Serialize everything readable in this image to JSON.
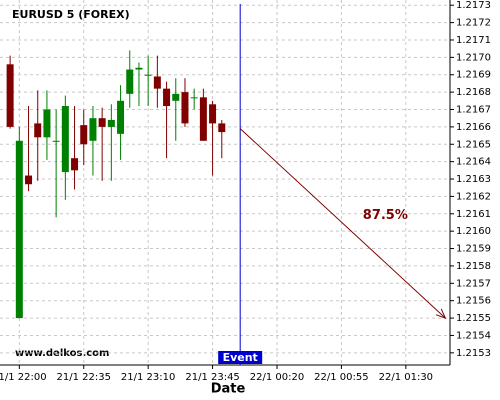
{
  "chart_data": {
    "type": "candlestick",
    "title": "EURUSD 5 (FOREX)",
    "watermark": "www.delkos.com",
    "xlabel": "Date",
    "categories": [
      null,
      null,
      null,
      null,
      null,
      null,
      null,
      null,
      null,
      null,
      null,
      null,
      null,
      null,
      null,
      null,
      null,
      null,
      null,
      null,
      null,
      null,
      null,
      null
    ],
    "open": [
      1.21696,
      1.2155,
      1.21632,
      1.21662,
      1.21654,
      1.21652,
      1.21634,
      1.21642,
      1.21661,
      1.21652,
      1.21665,
      1.2166,
      1.21656,
      1.21679,
      1.21693,
      1.2169,
      1.21689,
      1.21682,
      1.21675,
      1.2168,
      1.21677,
      1.21677,
      1.21673,
      1.21662
    ],
    "high": [
      1.21701,
      1.2166,
      1.21672,
      1.21681,
      1.21681,
      1.2167,
      1.21678,
      1.21672,
      1.2167,
      1.21672,
      1.21671,
      1.21673,
      1.21684,
      1.21704,
      1.21697,
      1.21701,
      1.21701,
      1.21686,
      1.21688,
      1.21688,
      1.21682,
      1.21682,
      1.21675,
      1.21664
    ],
    "low": [
      1.21659,
      1.2155,
      1.21623,
      1.21629,
      1.21641,
      1.21608,
      1.21618,
      1.21624,
      1.21638,
      1.21632,
      1.21629,
      1.21629,
      1.21641,
      1.21671,
      1.21672,
      1.21672,
      1.21671,
      1.21642,
      1.21652,
      1.2166,
      1.2167,
      1.21652,
      1.21632,
      1.21642
    ],
    "close": [
      1.2166,
      1.21652,
      1.21627,
      1.21654,
      1.2167,
      1.21652,
      1.21672,
      1.21635,
      1.2165,
      1.21665,
      1.2166,
      1.21664,
      1.21675,
      1.21693,
      1.21694,
      1.2169,
      1.21682,
      1.21672,
      1.21679,
      1.21662,
      1.21677,
      1.21652,
      1.21662,
      1.21657
    ],
    "up_color": "#008000",
    "down_color": "#800000",
    "xlim": [
      -1.1,
      47.8
    ],
    "xticks": [
      {
        "value": 1,
        "label": "21/1 22:00"
      },
      {
        "value": 8,
        "label": "21/1 22:35"
      },
      {
        "value": 15,
        "label": "21/1 23:10"
      },
      {
        "value": 22,
        "label": "21/1 23:45"
      },
      {
        "value": 29,
        "label": "22/1 00:20"
      },
      {
        "value": 36,
        "label": "22/1 00:55"
      },
      {
        "value": 43,
        "label": "22/1 01:30"
      }
    ],
    "ylim": [
      1.21523,
      1.21733
    ],
    "yticks": [
      1.2153,
      1.2154,
      1.2155,
      1.2156,
      1.2157,
      1.2158,
      1.2159,
      {
        "value": 1.216,
        "label": "1.2160"
      },
      1.2161,
      1.2162,
      1.2163,
      1.2164,
      1.2165,
      1.2166,
      1.2167,
      1.2168,
      1.2169,
      {
        "value": 1.217,
        "label": "1.2170"
      },
      1.2171,
      1.2172,
      1.2173
    ],
    "grid": true,
    "event": {
      "x": 25,
      "label": "Event",
      "color": "#0000cc"
    },
    "forecast": {
      "x": [
        25,
        47.3
      ],
      "y": [
        1.21659,
        1.2155
      ],
      "label": "87.5%",
      "color": "#800000"
    }
  }
}
